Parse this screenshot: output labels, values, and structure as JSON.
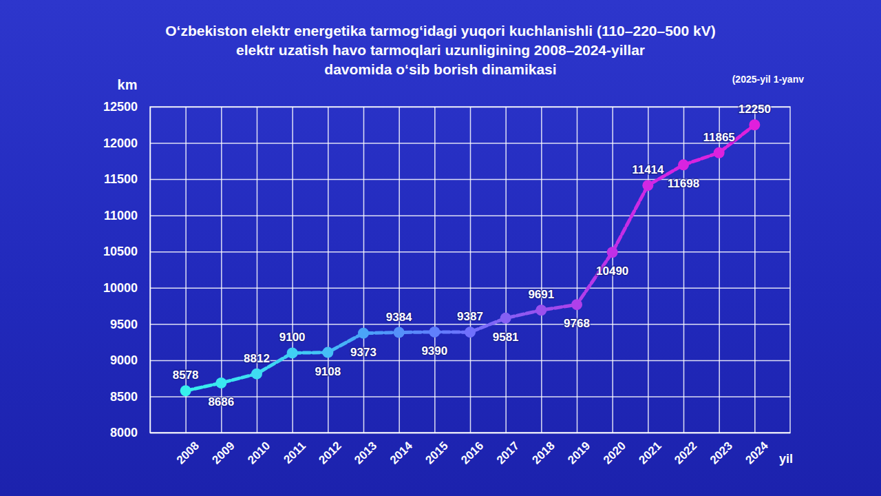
{
  "chart_data": {
    "type": "line",
    "title": [
      "O‘zbekiston elektr energetika tarmog‘idagi yuqori kuchlanishli (110–220–500 kV)",
      "elektr uzatish havo tarmoqlari uzunligining 2008–2024-yillar",
      "davomida o‘sib borish dinamikasi"
    ],
    "subtitle": "(2025-yil 1-yanv",
    "y_label": "km",
    "x_label": "yil",
    "categories": [
      "2008",
      "2009",
      "2010",
      "2011",
      "2012",
      "2013",
      "2014",
      "2015",
      "2016",
      "2017",
      "2018",
      "2019",
      "2020",
      "2021",
      "2022",
      "2023",
      "2024"
    ],
    "values": [
      8578,
      8686,
      8812,
      9100,
      9108,
      9373,
      9384,
      9390,
      9387,
      9581,
      9691,
      9768,
      10490,
      11414,
      11698,
      11865,
      12250
    ],
    "colors": [
      "#36f0ec",
      "#3ae8f0",
      "#3fdcf2",
      "#40d0f4",
      "#45bef6",
      "#4aa4f8",
      "#5590fa",
      "#6080fc",
      "#7070fc",
      "#8660f4",
      "#9a50ee",
      "#b040ea",
      "#c030e6",
      "#d028e4",
      "#d824e0",
      "#dc22de",
      "#e020dc"
    ],
    "ylim": [
      8000,
      12500
    ],
    "yticks": [
      8000,
      8500,
      9000,
      9500,
      10000,
      10500,
      11000,
      11500,
      12000,
      12500
    ],
    "grid": true,
    "marker": "circle",
    "line_style": "dashed",
    "data_labels": true
  }
}
